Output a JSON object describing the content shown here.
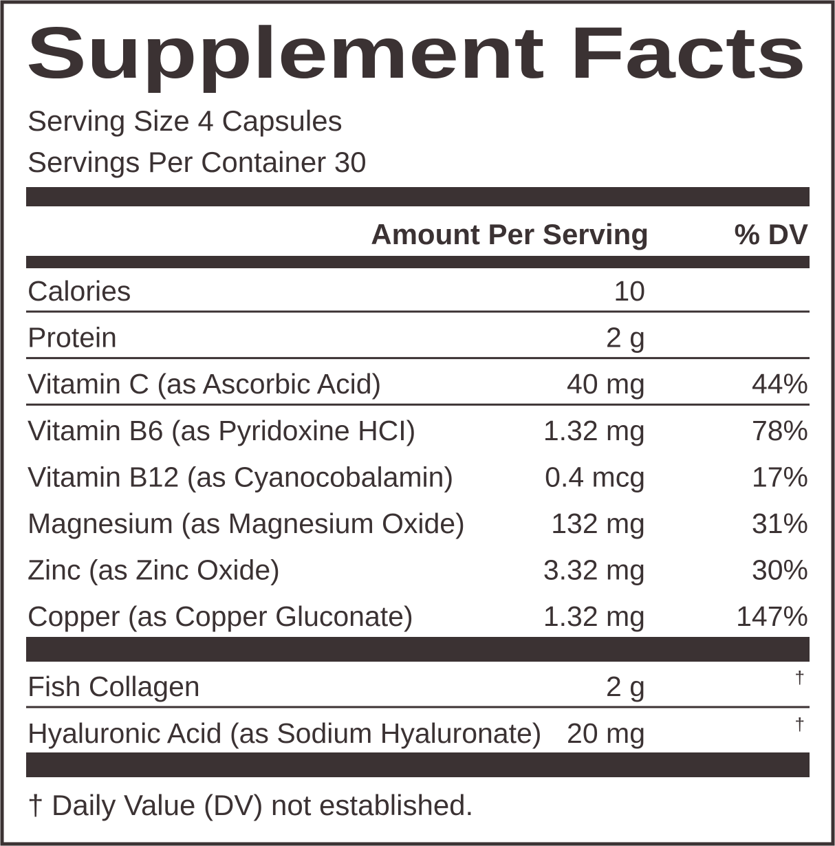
{
  "title": "Supplement Facts",
  "serving_size": "Serving Size 4 Capsules",
  "servings_per_container": "Servings Per Container 30",
  "header": {
    "amount": "Amount Per Serving",
    "dv": "% DV"
  },
  "rows": [
    [
      "Calories",
      "10"
    ],
    [
      "Protein",
      "2 g"
    ],
    [
      "Vitamin C (as Ascorbic Acid)",
      "40 mg",
      "44%"
    ],
    [
      "Vitamin B6 (as Pyridoxine HCI)",
      "1.32 mg",
      "78%"
    ],
    [
      "Vitamin B12 (as Cyanocobalamin)",
      "0.4 mcg",
      "17%"
    ],
    [
      "Magnesium (as Magnesium Oxide)",
      "132 mg",
      "31%"
    ],
    [
      "Zinc (as Zinc Oxide)",
      "3.32 mg",
      "30%"
    ],
    [
      "Copper (as Copper Gluconate)",
      "1.32 mg",
      "147%"
    ]
  ],
  "other_rows": [
    [
      "Fish Collagen",
      "2 g",
      "†"
    ],
    [
      "Hyaluronic Acid (as Sodium Hyaluronate)",
      "20 mg",
      "†"
    ]
  ],
  "footnote": "† Daily Value (DV) not established."
}
